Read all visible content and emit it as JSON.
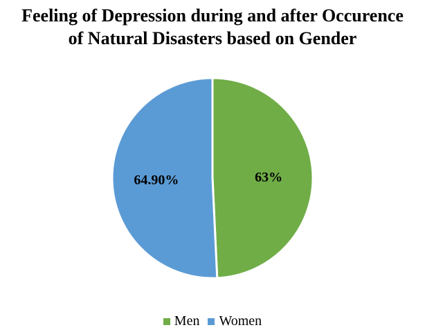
{
  "chart_data": {
    "type": "pie",
    "title": [
      "Feeling of Depression during and after Occurence",
      "of Natural Disasters based on Gender"
    ],
    "slices": [
      {
        "name": "Men",
        "value": 63,
        "label": "63%",
        "color": "#70ad47"
      },
      {
        "name": "Women",
        "value": 64.9,
        "label": "64.90%",
        "color": "#5b9bd5"
      }
    ],
    "legend": "bottom",
    "start_at": "top",
    "direction": "clockwise"
  }
}
